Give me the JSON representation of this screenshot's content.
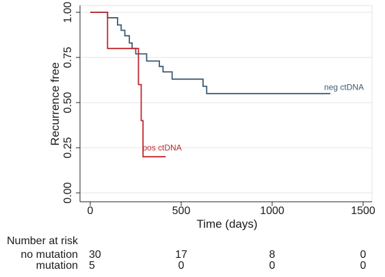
{
  "chart_data": {
    "type": "line",
    "step": true,
    "title": "",
    "xlabel": "Time (days)",
    "ylabel": "Recurrence free",
    "xlim": [
      0,
      1500
    ],
    "ylim": [
      0,
      1
    ],
    "xticks": [
      0,
      500,
      1000,
      1500
    ],
    "xtick_labels": [
      "0",
      "500",
      "1000",
      "1500"
    ],
    "yticks": [
      0,
      0.25,
      0.5,
      0.75,
      1.0
    ],
    "ytick_labels": [
      "0.00",
      "0.25",
      "0.50",
      "0.75",
      "1.00"
    ],
    "grid": "horizontal",
    "series": [
      {
        "name": "neg ctDNA",
        "color": "#3d5a73",
        "x": [
          0,
          95,
          150,
          170,
          190,
          215,
          230,
          250,
          310,
          380,
          400,
          450,
          620,
          640,
          1320
        ],
        "y": [
          1.0,
          0.97,
          0.93,
          0.9,
          0.87,
          0.83,
          0.8,
          0.77,
          0.73,
          0.7,
          0.67,
          0.63,
          0.59,
          0.55,
          0.55
        ]
      },
      {
        "name": "pos ctDNA",
        "color": "#c0272d",
        "x": [
          0,
          95,
          235,
          265,
          280,
          290,
          415
        ],
        "y": [
          1.0,
          0.8,
          0.8,
          0.6,
          0.4,
          0.2,
          0.2
        ]
      }
    ],
    "annotations": [
      {
        "text": "neg ctDNA",
        "x": 1395,
        "y": 0.57,
        "color": "#3d5a73"
      },
      {
        "text": "pos ctDNA",
        "x": 395,
        "y": 0.235,
        "color": "#c0272d"
      }
    ],
    "risk_table": {
      "title": "Number at risk",
      "times": [
        0,
        500,
        1000,
        1500
      ],
      "rows": [
        {
          "label": "no mutation",
          "values": [
            "30",
            "17",
            "8",
            "0"
          ]
        },
        {
          "label": "mutation",
          "values": [
            "5",
            "0",
            "0",
            "0"
          ]
        }
      ]
    }
  }
}
